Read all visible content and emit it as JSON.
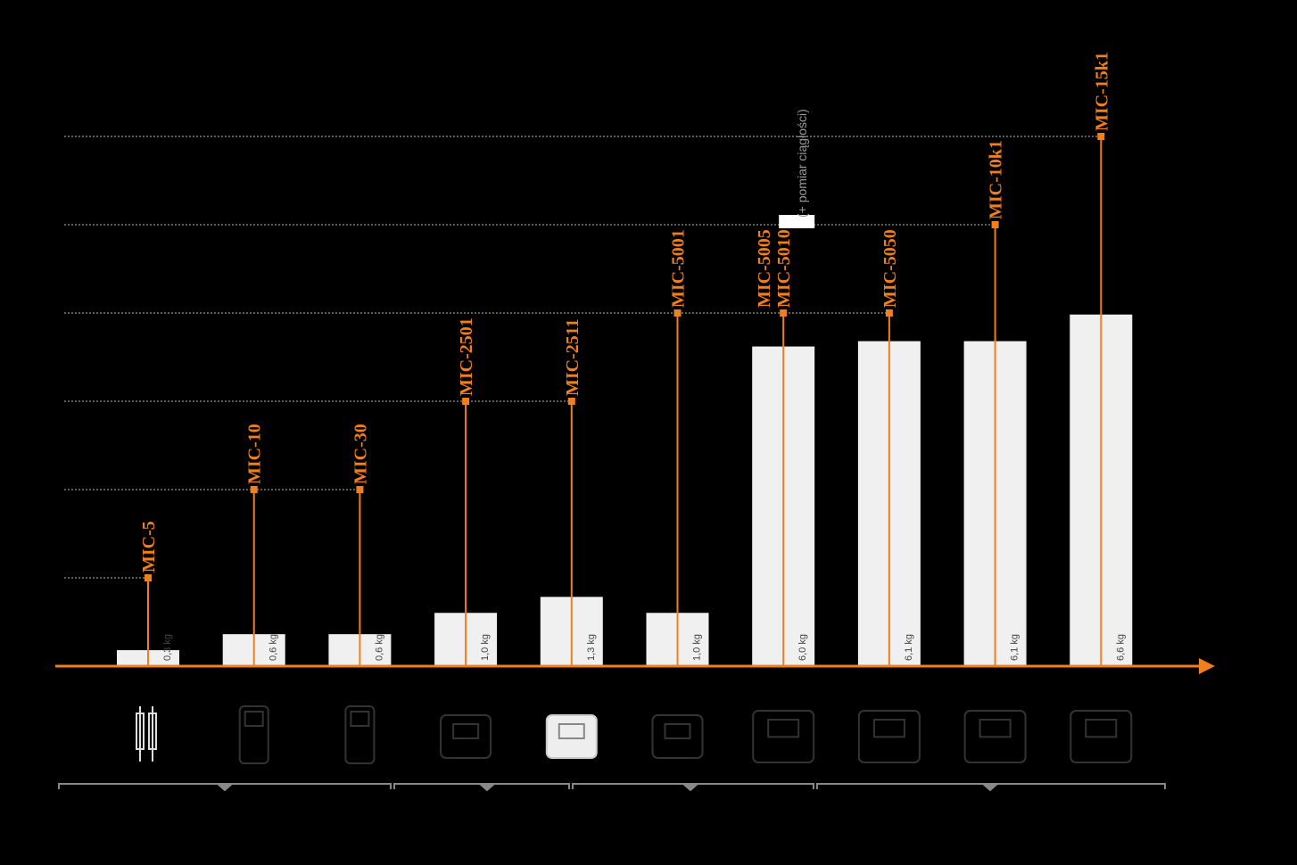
{
  "chart_data": {
    "type": "bar",
    "categories": [
      [
        "MIC-5"
      ],
      [
        "MIC-10"
      ],
      [
        "MIC-30"
      ],
      [
        "MIC-2501"
      ],
      [
        "MIC-2511"
      ],
      [
        "MIC-5001"
      ],
      [
        "MIC-5005",
        "MIC-5010"
      ],
      [
        "MIC-5050"
      ],
      [
        "MIC-10k1"
      ],
      [
        "MIC-15k1"
      ]
    ],
    "series": [
      {
        "type": "bar",
        "axis": "y2",
        "color": "#f0f0f0",
        "values": [
          0.3,
          0.6,
          0.6,
          1.0,
          1.3,
          1.0,
          6.0,
          6.1,
          6.1,
          6.6
        ],
        "value_labels": [
          "0,3 kg",
          "0,6 kg",
          "0,6 kg",
          "1,0 kg",
          "1,3 kg",
          "1,0 kg",
          "6,0 kg",
          "6,1 kg",
          "6,1 kg",
          "6,6 kg"
        ]
      },
      {
        "type": "stem",
        "color": "#f07f1d",
        "values": [
          1,
          2,
          2,
          3,
          3,
          4,
          4,
          4,
          5,
          6
        ]
      }
    ],
    "annotation": "(+ pomiar ciągłości)",
    "ylim": [
      0,
      7
    ],
    "yticks": [
      1,
      2,
      3,
      4,
      5,
      6
    ],
    "y2lim": [
      0,
      11.6
    ],
    "grid": true
  }
}
